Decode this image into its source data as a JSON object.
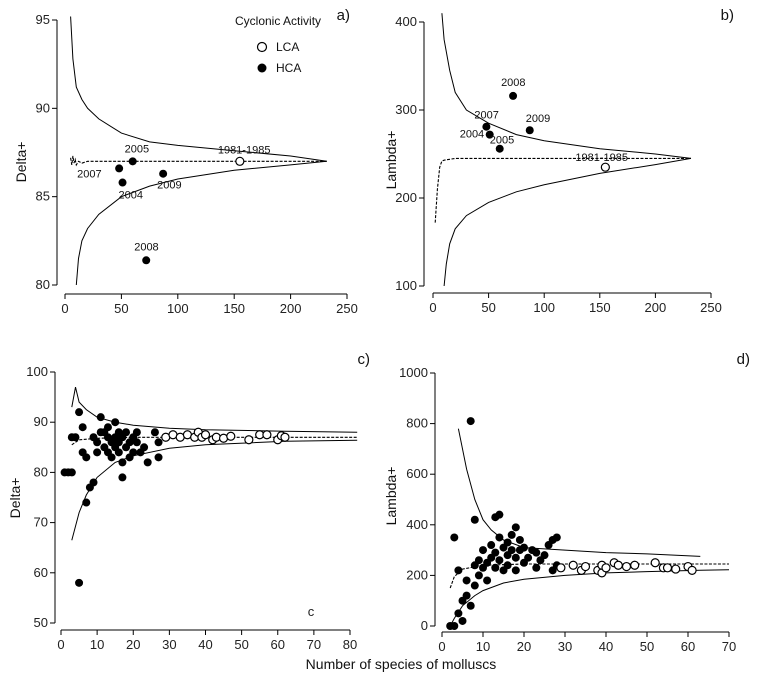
{
  "figure": {
    "common_xlabel": "Number of species of molluscs",
    "legend": {
      "title": "Cyclonic Activity",
      "items": [
        {
          "label": "LCA",
          "marker": "open-circle"
        },
        {
          "label": "HCA",
          "marker": "filled-circle"
        }
      ]
    }
  },
  "chart_data": [
    {
      "id": "a",
      "panel_label": "a)",
      "type": "scatter",
      "ylabel": "Delta+",
      "xlim": [
        0,
        250
      ],
      "ylim": [
        80,
        95
      ],
      "xticks": [
        0,
        50,
        100,
        150,
        200,
        250
      ],
      "yticks": [
        80,
        85,
        90,
        95
      ],
      "mean_line": [
        [
          5,
          87.2
        ],
        [
          6,
          86.8
        ],
        [
          7,
          87.3
        ],
        [
          8,
          86.9
        ],
        [
          9,
          87.1
        ],
        [
          10,
          86.8
        ],
        [
          12,
          87.0
        ],
        [
          15,
          86.9
        ],
        [
          20,
          87.0
        ],
        [
          30,
          87.0
        ],
        [
          50,
          87.0
        ],
        [
          100,
          87.0
        ],
        [
          150,
          87.0
        ],
        [
          200,
          87.0
        ],
        [
          232,
          87.0
        ]
      ],
      "upper_line": [
        [
          5,
          95.2
        ],
        [
          7,
          92.8
        ],
        [
          10,
          91.2
        ],
        [
          15,
          90.5
        ],
        [
          20,
          90.0
        ],
        [
          30,
          89.4
        ],
        [
          50,
          88.6
        ],
        [
          75,
          88.1
        ],
        [
          100,
          87.9
        ],
        [
          150,
          87.6
        ],
        [
          200,
          87.3
        ],
        [
          232,
          87.0
        ]
      ],
      "lower_line": [
        [
          10,
          80.0
        ],
        [
          12,
          81.5
        ],
        [
          15,
          82.5
        ],
        [
          20,
          83.2
        ],
        [
          30,
          84.0
        ],
        [
          50,
          85.0
        ],
        [
          75,
          85.6
        ],
        [
          100,
          86.0
        ],
        [
          150,
          86.5
        ],
        [
          200,
          86.8
        ],
        [
          232,
          87.0
        ]
      ],
      "points": [
        {
          "x": 155,
          "y": 87.0,
          "label": "1981-1985",
          "group": "LCA"
        },
        {
          "x": 60,
          "y": 87.0,
          "label": "2005",
          "group": "HCA"
        },
        {
          "x": 48,
          "y": 86.6,
          "label": "2007",
          "group": "HCA"
        },
        {
          "x": 51,
          "y": 85.8,
          "label": "2004",
          "group": "HCA"
        },
        {
          "x": 87,
          "y": 86.3,
          "label": "2009",
          "group": "HCA"
        },
        {
          "x": 72,
          "y": 81.4,
          "label": "2008",
          "group": "HCA"
        }
      ]
    },
    {
      "id": "b",
      "panel_label": "b)",
      "type": "scatter",
      "ylabel": "Lambda+",
      "xlim": [
        0,
        250
      ],
      "ylim": [
        100,
        400
      ],
      "xticks": [
        0,
        50,
        100,
        150,
        200,
        250
      ],
      "yticks": [
        100,
        200,
        300,
        400
      ],
      "mean_line": [
        [
          2,
          172
        ],
        [
          4,
          210
        ],
        [
          6,
          235
        ],
        [
          8,
          242
        ],
        [
          10,
          243
        ],
        [
          15,
          244
        ],
        [
          20,
          245
        ],
        [
          50,
          245
        ],
        [
          100,
          245
        ],
        [
          150,
          245
        ],
        [
          200,
          245
        ],
        [
          232,
          245
        ]
      ],
      "upper_line": [
        [
          8,
          410
        ],
        [
          10,
          380
        ],
        [
          15,
          345
        ],
        [
          20,
          320
        ],
        [
          30,
          300
        ],
        [
          50,
          285
        ],
        [
          75,
          272
        ],
        [
          100,
          265
        ],
        [
          150,
          256
        ],
        [
          200,
          250
        ],
        [
          232,
          245
        ]
      ],
      "lower_line": [
        [
          10,
          100
        ],
        [
          12,
          125
        ],
        [
          15,
          148
        ],
        [
          20,
          165
        ],
        [
          30,
          180
        ],
        [
          50,
          195
        ],
        [
          75,
          207
        ],
        [
          100,
          215
        ],
        [
          150,
          228
        ],
        [
          200,
          238
        ],
        [
          232,
          245
        ]
      ],
      "points": [
        {
          "x": 155,
          "y": 235,
          "label": "1981-1985",
          "group": "LCA"
        },
        {
          "x": 72,
          "y": 316,
          "label": "2008",
          "group": "HCA"
        },
        {
          "x": 48,
          "y": 281,
          "label": "2007",
          "group": "HCA"
        },
        {
          "x": 51,
          "y": 272,
          "label": "2004",
          "group": "HCA"
        },
        {
          "x": 87,
          "y": 277,
          "label": "2009",
          "group": "HCA"
        },
        {
          "x": 60,
          "y": 256,
          "label": "2005",
          "group": "HCA"
        }
      ]
    },
    {
      "id": "c",
      "panel_label": "c)",
      "corner_text": "c",
      "type": "scatter",
      "ylabel": "Delta+",
      "xlim": [
        0,
        80
      ],
      "ylim": [
        50,
        100
      ],
      "xticks": [
        0,
        10,
        20,
        30,
        40,
        50,
        60,
        70,
        80
      ],
      "yticks": [
        50,
        60,
        70,
        80,
        90,
        100
      ],
      "mean_line": [
        [
          3,
          85.5
        ],
        [
          5,
          86.5
        ],
        [
          10,
          86.8
        ],
        [
          20,
          87.0
        ],
        [
          40,
          87.0
        ],
        [
          62,
          87.0
        ],
        [
          82,
          87.0
        ]
      ],
      "upper_line": [
        [
          3,
          93
        ],
        [
          4,
          97
        ],
        [
          5,
          94
        ],
        [
          7,
          92.5
        ],
        [
          10,
          91
        ],
        [
          15,
          90
        ],
        [
          20,
          89.4
        ],
        [
          30,
          88.8
        ],
        [
          40,
          88.5
        ],
        [
          62,
          88.2
        ],
        [
          82,
          88.0
        ]
      ],
      "lower_line": [
        [
          3,
          66.5
        ],
        [
          5,
          72
        ],
        [
          7,
          75.5
        ],
        [
          10,
          79
        ],
        [
          15,
          82
        ],
        [
          20,
          83.3
        ],
        [
          30,
          84.8
        ],
        [
          40,
          85.5
        ],
        [
          62,
          86.2
        ],
        [
          82,
          86.4
        ]
      ],
      "hca_points": [
        [
          1,
          80
        ],
        [
          2,
          80
        ],
        [
          3,
          80
        ],
        [
          4,
          87
        ],
        [
          5,
          92
        ],
        [
          6,
          89
        ],
        [
          7,
          83
        ],
        [
          7,
          74
        ],
        [
          8,
          77
        ],
        [
          9,
          78
        ],
        [
          9,
          87
        ],
        [
          10,
          86
        ],
        [
          10,
          84
        ],
        [
          11,
          91
        ],
        [
          11,
          88
        ],
        [
          12,
          88
        ],
        [
          12,
          85
        ],
        [
          13,
          87
        ],
        [
          13,
          89
        ],
        [
          13,
          84
        ],
        [
          14,
          86
        ],
        [
          14,
          83
        ],
        [
          15,
          87
        ],
        [
          15,
          85
        ],
        [
          15,
          90
        ],
        [
          16,
          86
        ],
        [
          16,
          88
        ],
        [
          16,
          84
        ],
        [
          17,
          87
        ],
        [
          17,
          82
        ],
        [
          17,
          79
        ],
        [
          18,
          85
        ],
        [
          18,
          88
        ],
        [
          19,
          86
        ],
        [
          19,
          83
        ],
        [
          20,
          87
        ],
        [
          20,
          84
        ],
        [
          21,
          86
        ],
        [
          21,
          88
        ],
        [
          22,
          84
        ],
        [
          23,
          85
        ],
        [
          24,
          82
        ],
        [
          26,
          88
        ],
        [
          27,
          86
        ],
        [
          27,
          83
        ],
        [
          5,
          58
        ],
        [
          3,
          87
        ],
        [
          6,
          84
        ]
      ],
      "lca_points": [
        [
          29,
          87
        ],
        [
          31,
          87.5
        ],
        [
          33,
          87
        ],
        [
          35,
          87.5
        ],
        [
          37,
          87
        ],
        [
          38,
          88
        ],
        [
          39,
          87
        ],
        [
          40,
          87.5
        ],
        [
          42,
          86.5
        ],
        [
          43,
          87
        ],
        [
          45,
          86.8
        ],
        [
          47,
          87.2
        ],
        [
          52,
          86.5
        ],
        [
          55,
          87.5
        ],
        [
          57,
          87.5
        ],
        [
          60,
          86.5
        ],
        [
          61,
          87.3
        ],
        [
          62,
          87
        ]
      ]
    },
    {
      "id": "d",
      "panel_label": "d)",
      "type": "scatter",
      "ylabel": "Lambda+",
      "xlim": [
        0,
        70
      ],
      "ylim": [
        0,
        1000
      ],
      "xticks": [
        0,
        10,
        20,
        30,
        40,
        50,
        60,
        70
      ],
      "yticks": [
        0,
        200,
        400,
        600,
        800,
        1000
      ],
      "mean_line": [
        [
          2,
          150
        ],
        [
          3,
          195
        ],
        [
          5,
          225
        ],
        [
          10,
          240
        ],
        [
          20,
          245
        ],
        [
          30,
          245
        ],
        [
          50,
          245
        ],
        [
          70,
          245
        ]
      ],
      "upper_line": [
        [
          4,
          780
        ],
        [
          6,
          620
        ],
        [
          8,
          500
        ],
        [
          10,
          420
        ],
        [
          12,
          380
        ],
        [
          15,
          340
        ],
        [
          20,
          310
        ],
        [
          30,
          300
        ],
        [
          40,
          290
        ],
        [
          50,
          285
        ],
        [
          63,
          275
        ]
      ],
      "lower_line": [
        [
          2,
          0
        ],
        [
          3,
          30
        ],
        [
          5,
          80
        ],
        [
          8,
          120
        ],
        [
          10,
          140
        ],
        [
          15,
          170
        ],
        [
          20,
          185
        ],
        [
          30,
          200
        ],
        [
          40,
          210
        ],
        [
          50,
          215
        ],
        [
          63,
          220
        ],
        [
          70,
          222
        ]
      ],
      "hca_points": [
        [
          2,
          0
        ],
        [
          3,
          0
        ],
        [
          3,
          350
        ],
        [
          4,
          220
        ],
        [
          5,
          100
        ],
        [
          6,
          180
        ],
        [
          6,
          120
        ],
        [
          7,
          810
        ],
        [
          7,
          80
        ],
        [
          8,
          240
        ],
        [
          8,
          160
        ],
        [
          9,
          200
        ],
        [
          9,
          260
        ],
        [
          10,
          230
        ],
        [
          10,
          300
        ],
        [
          11,
          250
        ],
        [
          11,
          180
        ],
        [
          12,
          270
        ],
        [
          12,
          320
        ],
        [
          13,
          290
        ],
        [
          13,
          230
        ],
        [
          13,
          430
        ],
        [
          14,
          350
        ],
        [
          14,
          260
        ],
        [
          15,
          310
        ],
        [
          15,
          220
        ],
        [
          16,
          330
        ],
        [
          16,
          280
        ],
        [
          16,
          240
        ],
        [
          17,
          360
        ],
        [
          17,
          300
        ],
        [
          18,
          390
        ],
        [
          18,
          270
        ],
        [
          18,
          220
        ],
        [
          19,
          340
        ],
        [
          19,
          300
        ],
        [
          20,
          310
        ],
        [
          20,
          250
        ],
        [
          21,
          270
        ],
        [
          22,
          300
        ],
        [
          23,
          290
        ],
        [
          23,
          230
        ],
        [
          24,
          260
        ],
        [
          25,
          280
        ],
        [
          26,
          320
        ],
        [
          27,
          340
        ],
        [
          27,
          220
        ],
        [
          28,
          350
        ],
        [
          28,
          240
        ],
        [
          4,
          50
        ],
        [
          5,
          20
        ],
        [
          14,
          440
        ],
        [
          8,
          420
        ]
      ],
      "lca_points": [
        [
          29,
          230
        ],
        [
          32,
          240
        ],
        [
          34,
          220
        ],
        [
          35,
          235
        ],
        [
          38,
          220
        ],
        [
          39,
          210
        ],
        [
          39,
          240
        ],
        [
          40,
          230
        ],
        [
          42,
          250
        ],
        [
          43,
          240
        ],
        [
          45,
          235
        ],
        [
          47,
          240
        ],
        [
          52,
          250
        ],
        [
          54,
          230
        ],
        [
          55,
          230
        ],
        [
          57,
          225
        ],
        [
          60,
          235
        ],
        [
          61,
          220
        ]
      ]
    }
  ]
}
